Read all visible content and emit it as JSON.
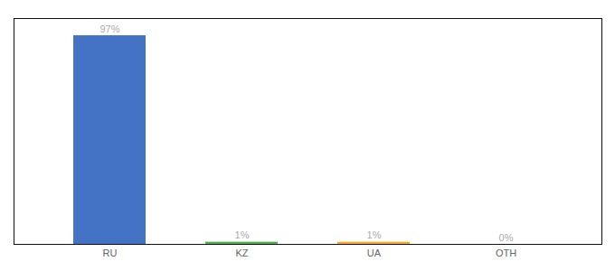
{
  "chart_data": {
    "type": "bar",
    "categories": [
      "RU",
      "KZ",
      "UA",
      "OTH"
    ],
    "values": [
      97,
      1,
      1,
      0
    ],
    "value_labels": [
      "97%",
      "1%",
      "1%",
      "0%"
    ],
    "colors": [
      "#4472c4",
      "#4caf50",
      "#ffa726",
      "#9e9e9e"
    ],
    "ylim": [
      0,
      105
    ],
    "yticks": [],
    "data_labels": true,
    "tick_labels": "x"
  }
}
